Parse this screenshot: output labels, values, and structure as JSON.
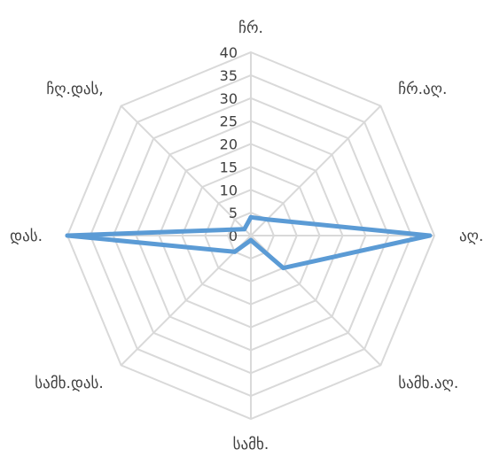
{
  "chart_data": {
    "type": "radar",
    "title": "",
    "categories": [
      "ჩრ.",
      "ჩრ.აღ.",
      "აღ.",
      "სამხ.აღ.",
      "სამხ.",
      "სამხ.დას.",
      "დას.",
      "ჩღ.დას,"
    ],
    "series": [
      {
        "values": [
          4,
          5,
          39,
          10,
          1,
          5,
          40,
          2
        ]
      }
    ],
    "r_ticks": [
      "0",
      "5",
      "10",
      "15",
      "20",
      "25",
      "30",
      "35",
      "40"
    ],
    "r_range": [
      0,
      40
    ],
    "grid": true,
    "legend": "none",
    "series_color": "#5B9BD5",
    "grid_color": "#D9D9D9"
  }
}
